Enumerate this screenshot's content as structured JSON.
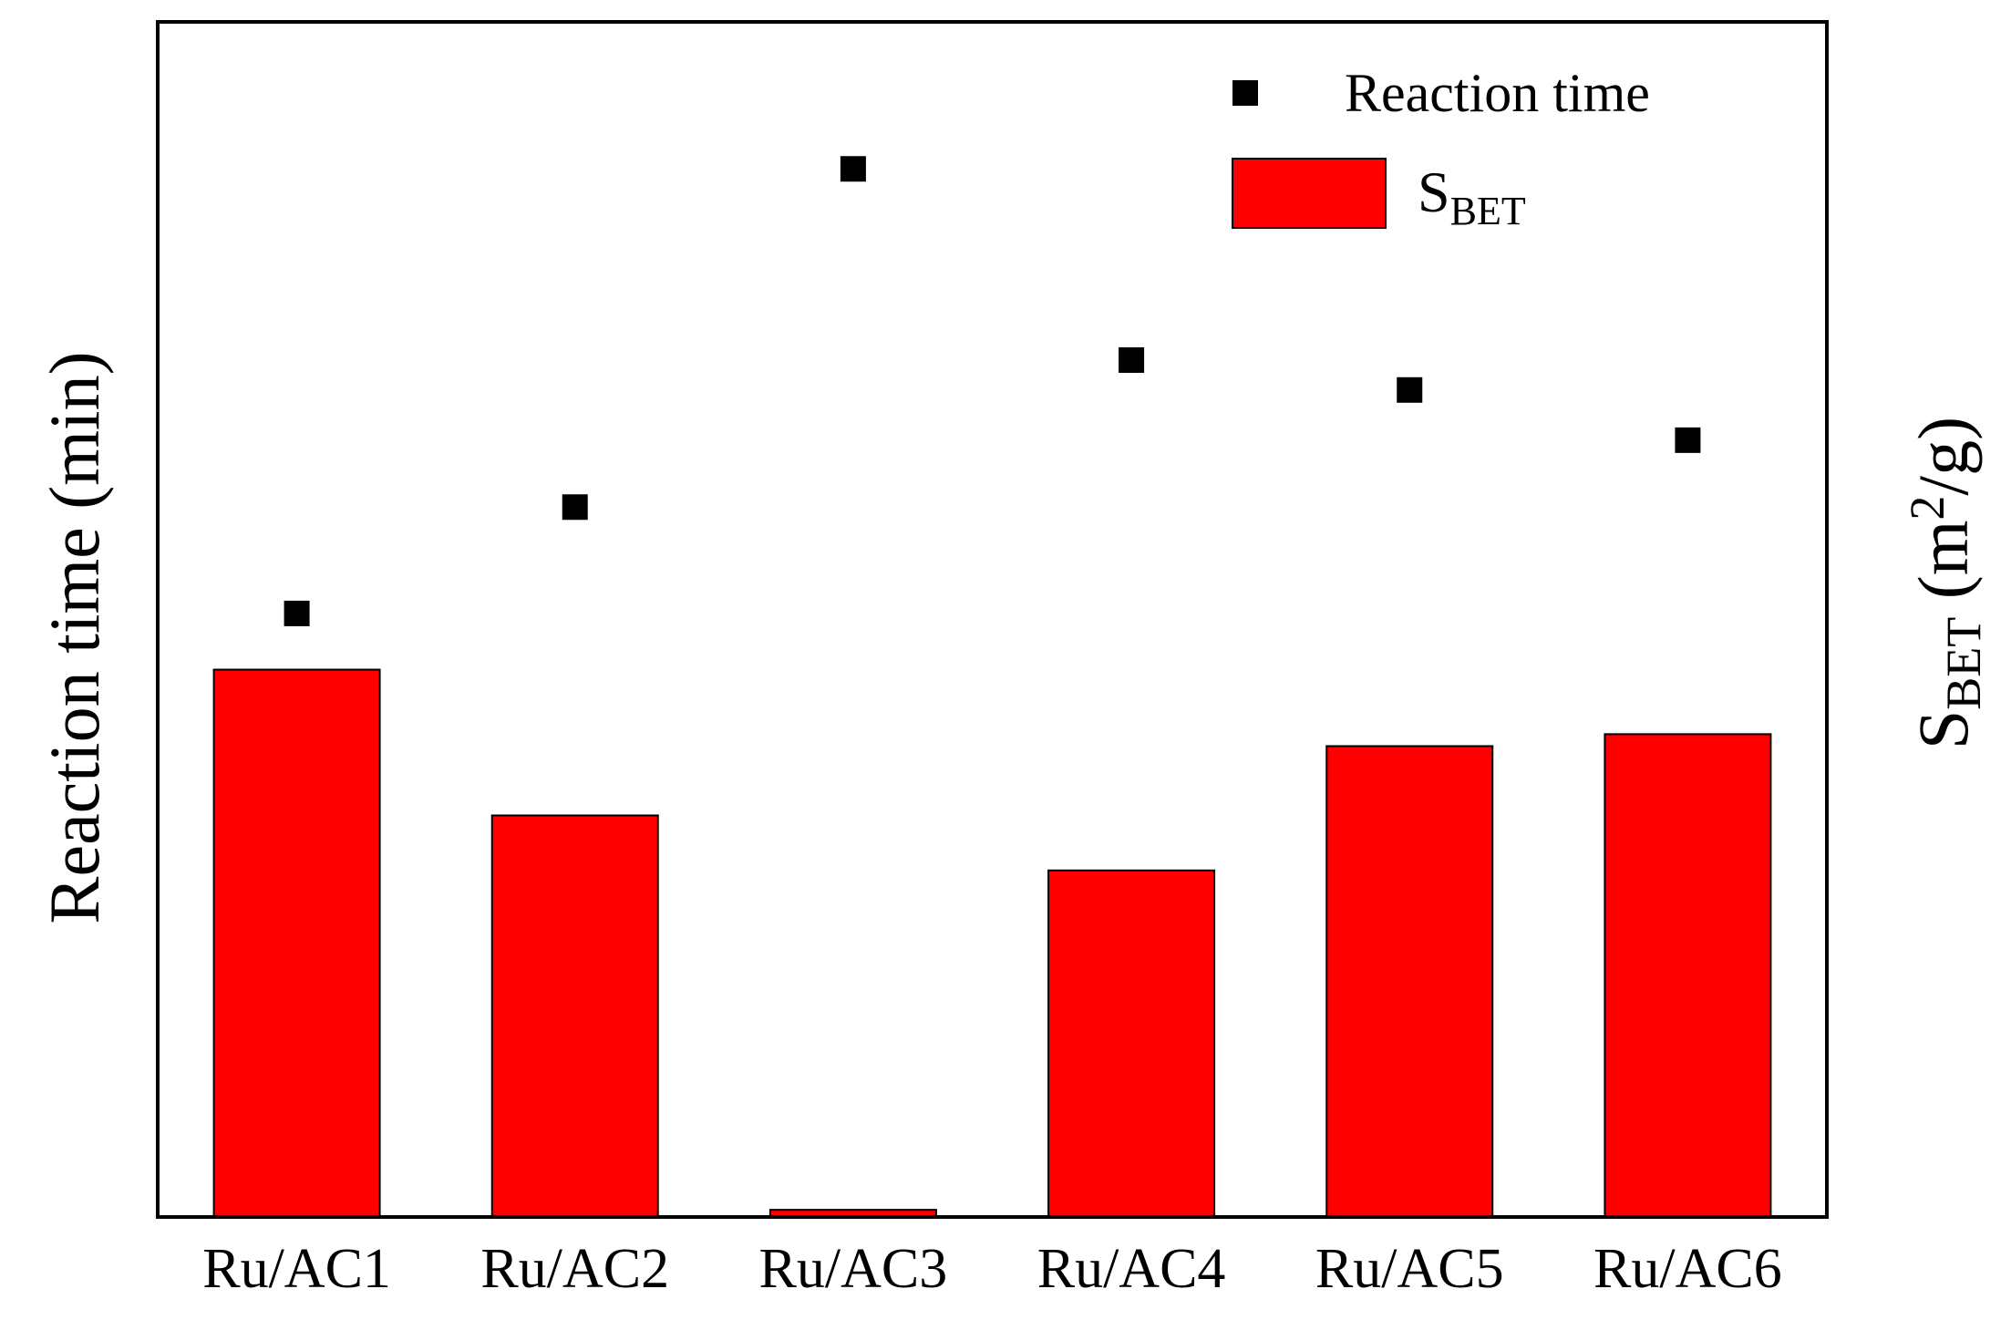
{
  "chart_data": {
    "type": "bar",
    "categories": [
      "Ru/AC1",
      "Ru/AC2",
      "Ru/AC3",
      "Ru/AC4",
      "Ru/AC5",
      "Ru/AC6"
    ],
    "series": [
      {
        "name": "S",
        "name_subscript": "BET",
        "kind": "bar",
        "axis": "right",
        "color": "#ff0000",
        "values": [
          0.458,
          0.336,
          0.006,
          0.29,
          0.394,
          0.404
        ]
      },
      {
        "name": "Reaction time",
        "kind": "scatter",
        "axis": "left",
        "color": "#000000",
        "marker": "square",
        "values": [
          0.505,
          0.594,
          0.877,
          0.717,
          0.692,
          0.65
        ]
      }
    ],
    "ylabel": "Reaction time (min)",
    "y2label": {
      "prefix": "S",
      "subscript": "BET",
      "open": " (m",
      "superscript": "2",
      "close": "/g)"
    },
    "ylim": [
      0,
      1
    ],
    "y2lim": [
      0,
      1
    ],
    "y_ticks_shown": false,
    "grid": false,
    "legend_position": "top-right"
  }
}
